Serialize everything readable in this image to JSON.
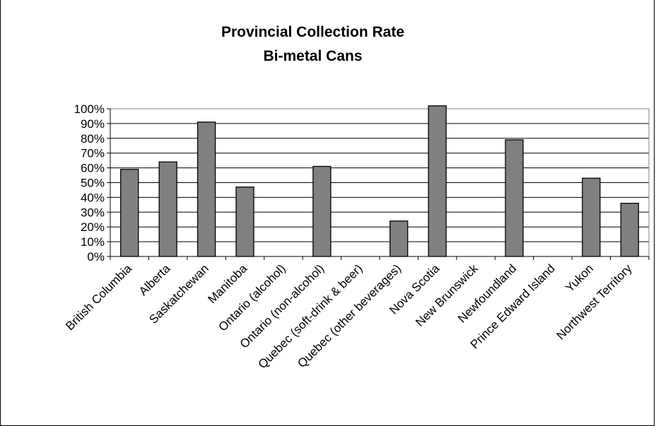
{
  "chart_data": {
    "type": "bar",
    "title": "Provincial Collection Rate",
    "subtitle": "Bi-metal Cans",
    "xlabel": "",
    "ylabel": "",
    "ylim": [
      0,
      100
    ],
    "yticks": [
      "0%",
      "10%",
      "20%",
      "30%",
      "40%",
      "50%",
      "60%",
      "70%",
      "80%",
      "90%",
      "100%"
    ],
    "grid": true,
    "legend": "none",
    "bar_color": "#808080",
    "categories": [
      "British Columbia",
      "Alberta",
      "Saskatchewan",
      "Manitoba",
      "Ontario (alcohol)",
      "Ontario (non-alcohol)",
      "Quebec (soft-drink & beer)",
      "Quebec (other beverages)",
      "Nova Scotia",
      "New Brunswick",
      "Newfoundland",
      "Prince Edward Island",
      "Yukon",
      "Northwest Territory"
    ],
    "values": [
      59,
      64,
      91,
      47,
      null,
      61,
      null,
      24,
      102,
      null,
      79,
      null,
      53,
      36
    ]
  }
}
